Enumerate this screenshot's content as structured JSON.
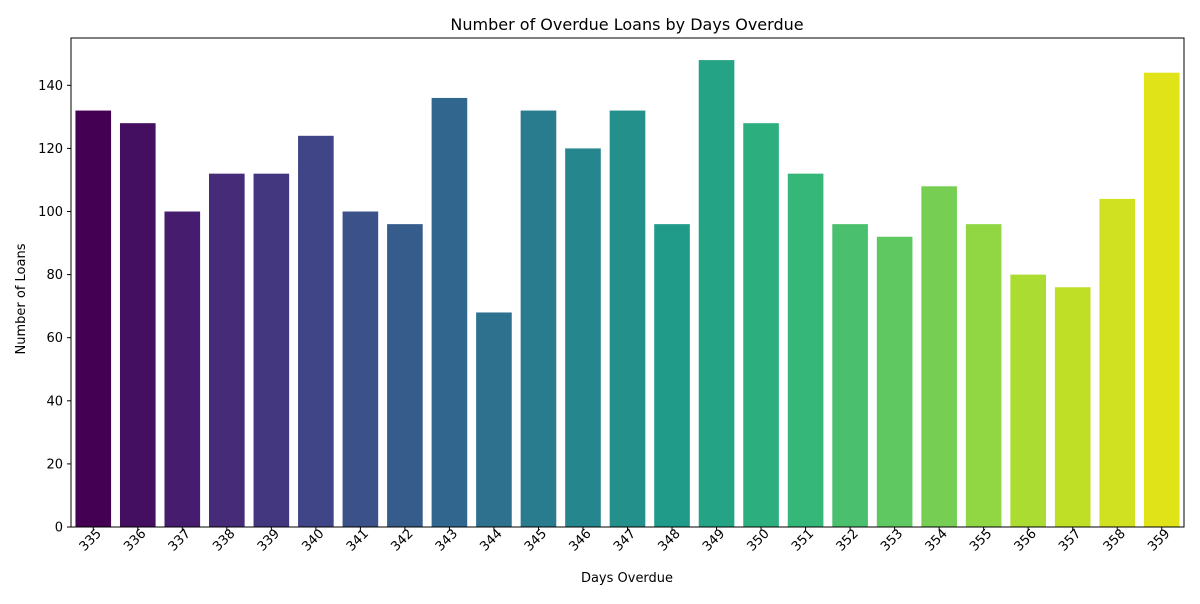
{
  "chart_data": {
    "type": "bar",
    "title": "Number of Overdue Loans by Days Overdue",
    "xlabel": "Days Overdue",
    "ylabel": "Number of Loans",
    "categories": [
      "335",
      "336",
      "337",
      "338",
      "339",
      "340",
      "341",
      "342",
      "343",
      "344",
      "345",
      "346",
      "347",
      "348",
      "349",
      "350",
      "351",
      "352",
      "353",
      "354",
      "355",
      "356",
      "357",
      "358",
      "359"
    ],
    "values": [
      132,
      128,
      100,
      112,
      112,
      124,
      100,
      96,
      136,
      68,
      132,
      120,
      132,
      96,
      148,
      128,
      112,
      96,
      92,
      108,
      96,
      80,
      76,
      104,
      144
    ],
    "ylim": [
      0,
      155
    ],
    "yticks": [
      0,
      20,
      40,
      60,
      80,
      100,
      120,
      140
    ],
    "grid": false,
    "legend": "none",
    "colormap": "viridis",
    "x_tick_rotation": 45,
    "colors": [
      "#440154",
      "#46085c",
      "#471063",
      "#48186a",
      "#482071",
      "#472777",
      "#46307e",
      "#453781",
      "#443e85",
      "#424086",
      "#3f4788",
      "#3d4e8a",
      "#39558c",
      "#37598c",
      "#355f8d",
      "#31668e",
      "#2f6b8e",
      "#2d718e",
      "#2b768e",
      "#297a8e",
      "#277f8e",
      "#25848e",
      "#238a8d",
      "#218e8d",
      "#20928c"
    ]
  }
}
